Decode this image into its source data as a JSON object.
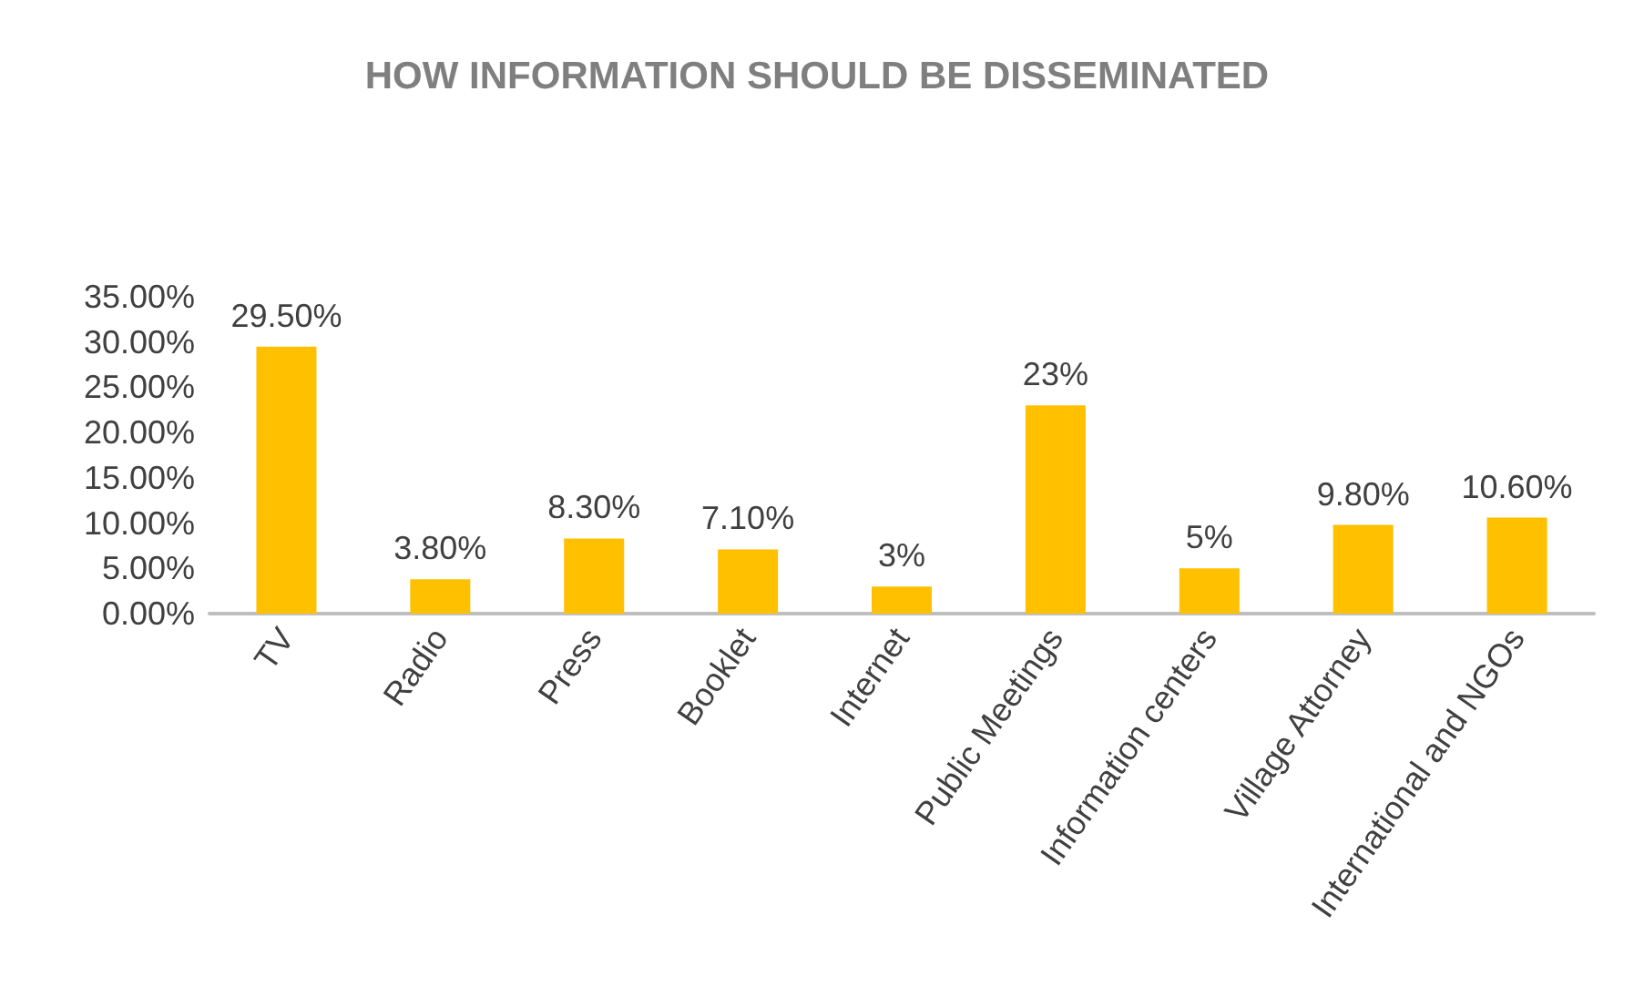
{
  "chart_data": {
    "type": "bar",
    "title": "HOW INFORMATION SHOULD BE DISSEMINATED",
    "categories": [
      "TV",
      "Radio",
      "Press",
      "Booklet",
      "Internet",
      "Public Meetings",
      "Information centers",
      "Village Attorney",
      "International and NGOs"
    ],
    "values": [
      29.5,
      3.8,
      8.3,
      7.1,
      3,
      23,
      5,
      9.8,
      10.6
    ],
    "value_labels": [
      "29.50%",
      "3.80%",
      "8.30%",
      "7.10%",
      "3%",
      "23%",
      "5%",
      "9.80%",
      "10.60%"
    ],
    "color": "#ffc000",
    "ylim": [
      0,
      35
    ],
    "yticks": [
      {
        "value": 0,
        "label": "0.00%"
      },
      {
        "value": 5,
        "label": "5.00%"
      },
      {
        "value": 10,
        "label": "10.00%"
      },
      {
        "value": 15,
        "label": "15.00%"
      },
      {
        "value": 20,
        "label": "20.00%"
      },
      {
        "value": 25,
        "label": "25.00%"
      },
      {
        "value": 30,
        "label": "30.00%"
      },
      {
        "value": 35,
        "label": "35.00%"
      }
    ]
  }
}
